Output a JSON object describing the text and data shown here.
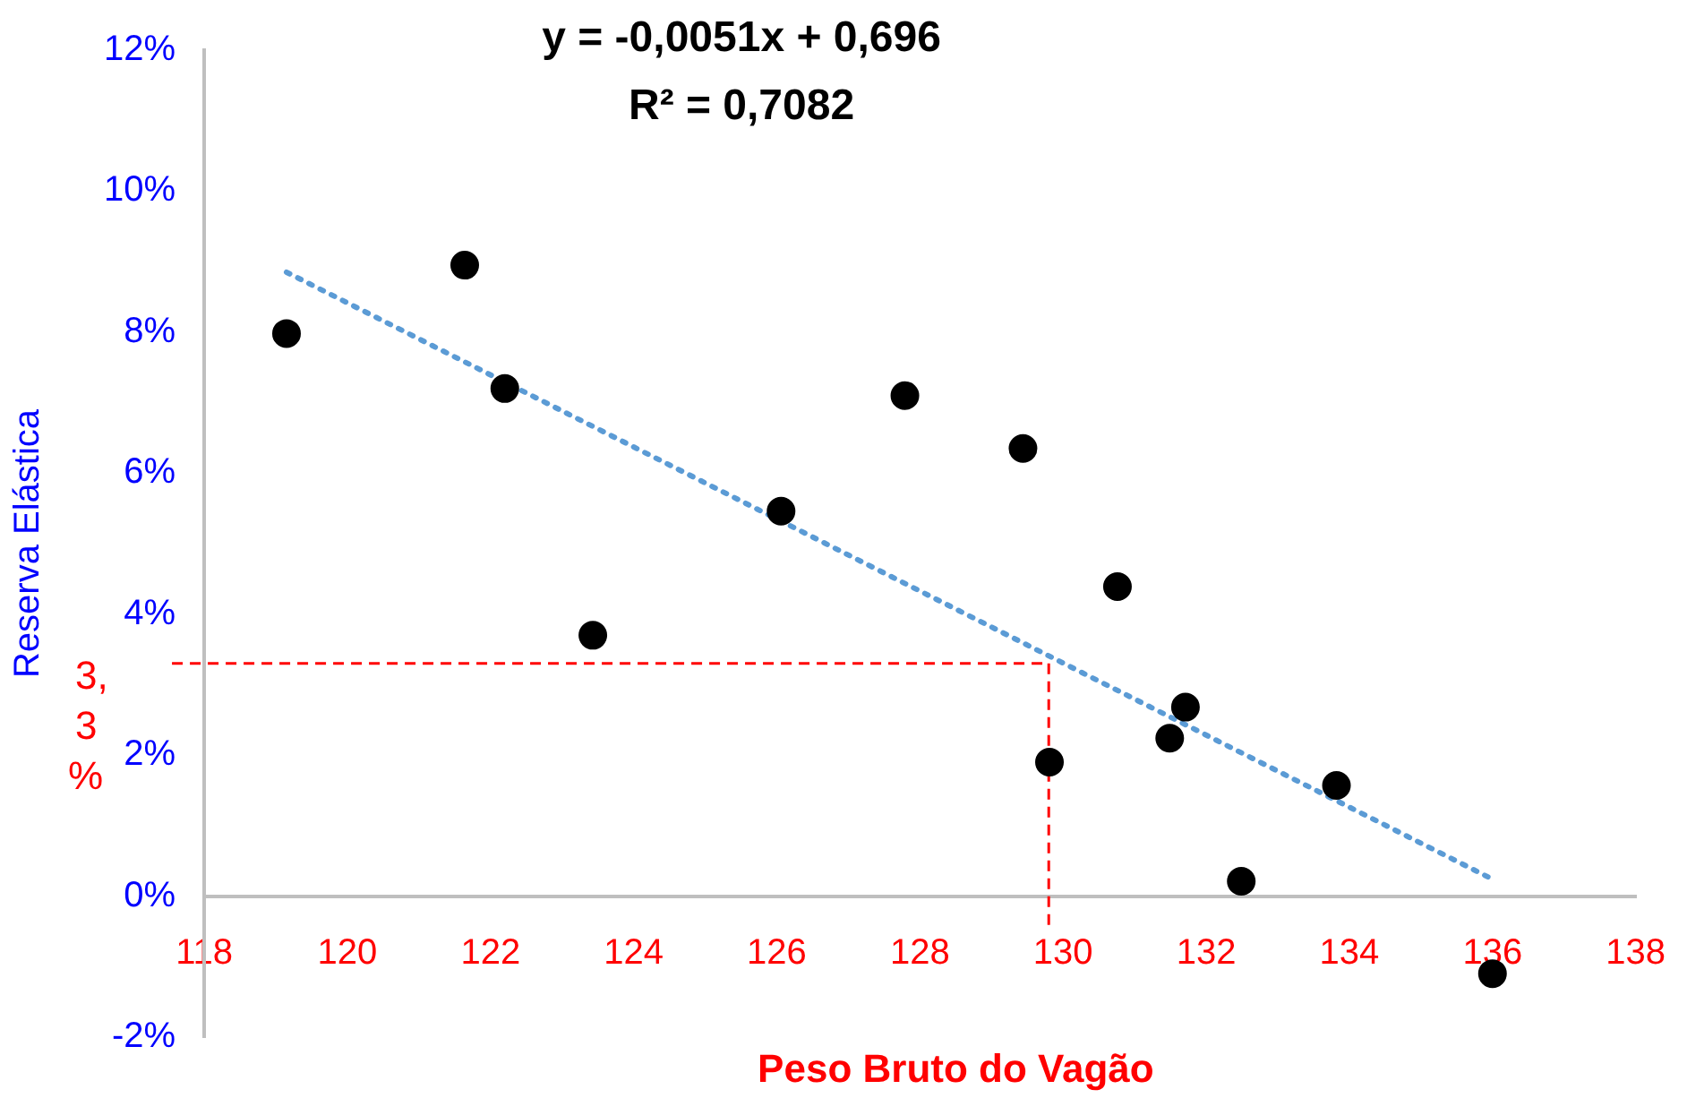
{
  "chart_data": {
    "type": "scatter",
    "xlabel": "Peso Bruto do Vagão",
    "ylabel": "Reserva Elástica",
    "annotations": [
      "y = -0,0051x + 0,696",
      "R² = 0,7082"
    ],
    "series": [
      {
        "type": "scatter",
        "color": "#000000",
        "x": [
          119.15,
          121.64,
          122.2,
          123.43,
          126.06,
          127.79,
          129.44,
          130.76,
          131.71,
          131.49,
          129.81,
          133.82,
          132.49,
          136.0
        ],
        "values": [
          7.98,
          8.95,
          7.2,
          3.7,
          5.46,
          7.1,
          6.35,
          4.39,
          2.68,
          2.24,
          1.9,
          1.57,
          0.21,
          -1.1
        ],
        "marker": "circle"
      },
      {
        "type": "line",
        "color": "#5b9bd5",
        "x": [
          119.15,
          136.0
        ],
        "values": [
          8.85,
          0.24
        ],
        "line_style": "dotted",
        "marker": "none"
      }
    ],
    "xlim": [
      118,
      138
    ],
    "xticks": [
      118,
      120,
      122,
      124,
      126,
      128,
      130,
      132,
      134,
      136,
      138
    ],
    "ylim": [
      -2,
      12
    ],
    "yticks": [
      {
        "value": -2,
        "label": "-2%"
      },
      {
        "value": 0,
        "label": "0%"
      },
      {
        "value": 2,
        "label": "2%"
      },
      {
        "value": 4,
        "label": "4%"
      },
      {
        "value": 6,
        "label": "6%"
      },
      {
        "value": 8,
        "label": "8%"
      },
      {
        "value": 10,
        "label": "10%"
      },
      {
        "value": 12,
        "label": "12%"
      }
    ],
    "ref_lines": [
      {
        "axis": "y",
        "value": 3.3,
        "label": "3,3%",
        "color": "#ff0000",
        "line_style": "dashed"
      },
      {
        "axis": "x",
        "value": 129.8,
        "color": "#ff0000",
        "line_style": "dashed"
      }
    ],
    "grid": false,
    "legend": false
  }
}
